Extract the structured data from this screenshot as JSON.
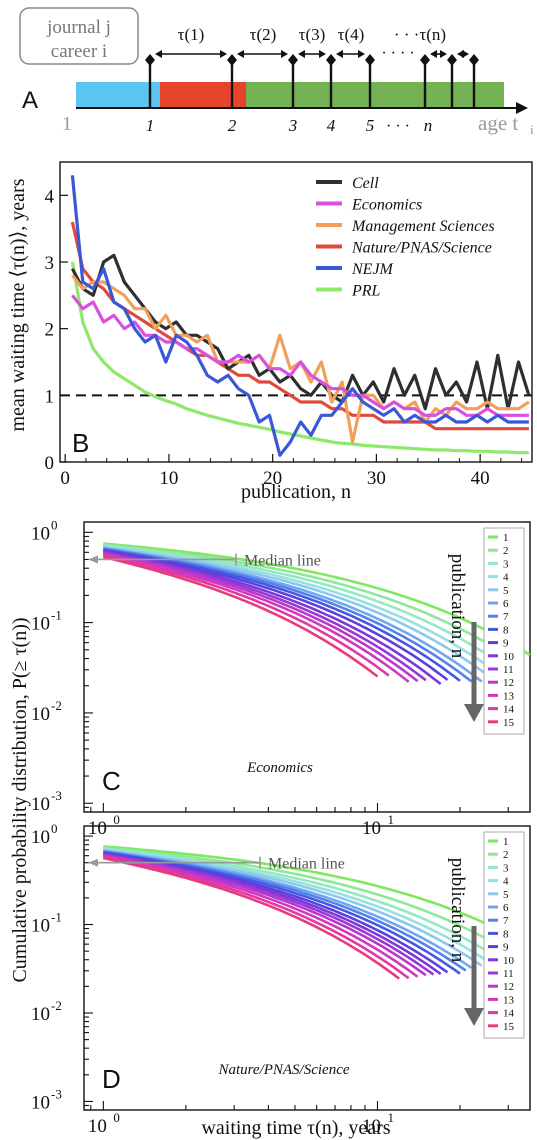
{
  "panel_a": {
    "panel_label": "A",
    "box_line1": "journal j",
    "box_line2": "career i",
    "origin_label": "1",
    "axis_label": "age t",
    "axis_label_sub": "i",
    "ticks": [
      "1",
      "2",
      "3",
      "4",
      "5",
      "n"
    ],
    "tick_ellipsis": "· · ·",
    "taus": [
      "τ(1)",
      "τ(2)",
      "τ(3)",
      "τ(4)",
      "· · ·τ(n)"
    ],
    "top_dots": "· · · ·",
    "segment_colors": [
      "#5bc4f0",
      "#e5432a",
      "#74b354"
    ]
  },
  "y_shared_label": "Cumulative probability distribution, P(≥ τ(n))",
  "chart_data": [
    {
      "id": "B",
      "panel_label": "B",
      "type": "line",
      "xlabel": "publication, n",
      "ylabel": "mean waiting time ⟨τ(n)⟩, years",
      "xlim": [
        -0.5,
        45
      ],
      "ylim": [
        0,
        4.5
      ],
      "xticks": [
        0,
        10,
        20,
        30,
        40
      ],
      "yticks": [
        0,
        1,
        2,
        3,
        4
      ],
      "reference_line": 1,
      "legend_position": "top-right",
      "series": [
        {
          "name": "Cell",
          "color": "#2f2f2f",
          "values": [
            2.9,
            2.6,
            2.5,
            3.0,
            3.1,
            2.7,
            2.5,
            2.3,
            2.1,
            2.0,
            2.1,
            1.9,
            1.9,
            1.8,
            1.7,
            1.4,
            1.5,
            1.6,
            1.3,
            1.4,
            1.2,
            1.3,
            1.1,
            1.0,
            1.2,
            1.0,
            0.9,
            1.3,
            1.0,
            1.2,
            0.9,
            1.4,
            1.0,
            1.3,
            0.8,
            1.4,
            1.0,
            1.2,
            0.9,
            1.5,
            0.8,
            1.6,
            0.8,
            1.5,
            1.0
          ]
        },
        {
          "name": "Economics",
          "color": "#d94fe0",
          "values": [
            2.5,
            2.3,
            2.4,
            2.1,
            2.2,
            2.0,
            2.1,
            1.9,
            1.9,
            1.8,
            1.8,
            1.7,
            1.7,
            1.6,
            1.5,
            1.5,
            1.6,
            1.5,
            1.6,
            1.4,
            1.4,
            1.3,
            1.5,
            1.3,
            1.2,
            1.1,
            1.1,
            1.0,
            1.0,
            0.9,
            0.8,
            0.9,
            0.8,
            0.8,
            0.7,
            0.7,
            0.8,
            0.8,
            0.7,
            0.7,
            0.8,
            0.7,
            0.7,
            0.7,
            0.7
          ]
        },
        {
          "name": "Management Sciences",
          "color": "#f0a05a",
          "values": [
            2.8,
            2.6,
            2.7,
            2.7,
            2.6,
            2.5,
            2.3,
            2.3,
            2.0,
            2.2,
            1.9,
            1.9,
            1.8,
            1.9,
            1.5,
            1.5,
            1.5,
            1.5,
            1.6,
            1.4,
            1.9,
            1.4,
            1.5,
            1.2,
            1.5,
            0.9,
            1.2,
            0.3,
            1.0,
            1.0,
            0.8,
            0.9,
            0.8,
            0.9,
            0.6,
            0.8,
            0.7,
            0.9,
            0.8,
            0.8,
            0.9,
            0.8,
            0.8,
            0.8,
            0.9
          ]
        },
        {
          "name": "Nature/PNAS/Science",
          "color": "#e04a3a",
          "values": [
            3.6,
            2.9,
            2.7,
            2.6,
            2.4,
            2.3,
            2.2,
            2.1,
            2.0,
            1.9,
            1.8,
            1.7,
            1.6,
            1.6,
            1.5,
            1.4,
            1.3,
            1.3,
            1.2,
            1.2,
            1.1,
            1.0,
            0.9,
            0.9,
            0.9,
            0.8,
            0.8,
            0.7,
            0.7,
            0.7,
            0.6,
            0.6,
            0.6,
            0.6,
            0.6,
            0.5,
            0.5,
            0.5,
            0.5,
            0.5,
            0.5,
            0.5,
            0.5,
            0.5,
            0.5
          ]
        },
        {
          "name": "NEJM",
          "color": "#3a57d8",
          "values": [
            4.3,
            2.7,
            2.6,
            2.9,
            2.4,
            2.3,
            2.0,
            1.8,
            1.9,
            1.5,
            1.9,
            1.8,
            1.6,
            1.3,
            1.2,
            1.3,
            1.1,
            1.0,
            0.6,
            0.7,
            0.1,
            0.3,
            0.6,
            0.4,
            0.7,
            0.7,
            0.9,
            1.1,
            0.9,
            0.8,
            0.7,
            0.8,
            0.6,
            0.7,
            0.6,
            0.6,
            0.7,
            0.6,
            0.6,
            0.7,
            0.6,
            0.7,
            0.6,
            0.6,
            0.6
          ]
        },
        {
          "name": "PRL",
          "color": "#8ee86a",
          "values": [
            3.0,
            2.1,
            1.7,
            1.5,
            1.35,
            1.25,
            1.15,
            1.05,
            0.98,
            0.92,
            0.87,
            0.8,
            0.75,
            0.7,
            0.66,
            0.62,
            0.58,
            0.55,
            0.52,
            0.49,
            0.45,
            0.42,
            0.39,
            0.36,
            0.33,
            0.3,
            0.28,
            0.27,
            0.25,
            0.24,
            0.23,
            0.22,
            0.21,
            0.2,
            0.19,
            0.18,
            0.18,
            0.17,
            0.17,
            0.16,
            0.16,
            0.15,
            0.15,
            0.14,
            0.14
          ]
        }
      ]
    },
    {
      "id": "C",
      "panel_label": "C",
      "type": "line",
      "title": "Economics",
      "xscale": "log",
      "yscale": "log",
      "xlim": [
        0.85,
        36
      ],
      "ylim": [
        0.0008,
        1.3
      ],
      "xtick_labels": [
        "10^0",
        "10^1"
      ],
      "ytick_labels": [
        "10^0",
        "10^-1",
        "10^-2",
        "10^-3"
      ],
      "annotation": "Median line",
      "median_level": 0.5,
      "side_label": "publication, n",
      "legend_position": "right",
      "legend_labels": [
        "1",
        "2",
        "3",
        "4",
        "5",
        "6",
        "7",
        "8",
        "9",
        "10",
        "11",
        "12",
        "13",
        "14",
        "15"
      ],
      "colors": [
        "#7ee860",
        "#8ce89a",
        "#95e8c0",
        "#96e0e0",
        "#8cc8ee",
        "#6ea8ee",
        "#5480ec",
        "#4458e4",
        "#5a40dc",
        "#7a38d8",
        "#9838d6",
        "#b838cc",
        "#d038be",
        "#e038a4",
        "#ea3a7c"
      ],
      "x_end": [
        36,
        33,
        30,
        28,
        26,
        24,
        22,
        20,
        18,
        17,
        15,
        14,
        13,
        11,
        10
      ],
      "series_note": "curves P(>=tau) = exp(-(t-1)^0.6 / s_k) with s_k per publication number",
      "scales": [
        3.0,
        2.65,
        2.4,
        2.2,
        2.05,
        1.9,
        1.8,
        1.7,
        1.6,
        1.5,
        1.42,
        1.35,
        1.28,
        1.2,
        1.12
      ]
    },
    {
      "id": "D",
      "panel_label": "D",
      "type": "line",
      "title": "Nature/PNAS/Science",
      "xscale": "log",
      "yscale": "log",
      "xlabel": "waiting time τ(n), years",
      "xlim": [
        0.85,
        36
      ],
      "ylim": [
        0.0008,
        1.3
      ],
      "xtick_labels": [
        "10^0",
        "10^1"
      ],
      "ytick_labels": [
        "10^0",
        "10^-1",
        "10^-2",
        "10^-3"
      ],
      "annotation": "Median line",
      "median_level": 0.5,
      "side_label": "publication, n",
      "legend_position": "right",
      "legend_labels": [
        "1",
        "2",
        "3",
        "4",
        "5",
        "6",
        "7",
        "8",
        "9",
        "10",
        "11",
        "12",
        "13",
        "14",
        "15"
      ],
      "colors": [
        "#7ee860",
        "#8ce89a",
        "#95e8c0",
        "#96e0e0",
        "#8cc8ee",
        "#6ea8ee",
        "#5480ec",
        "#4458e4",
        "#5a40dc",
        "#7a38d8",
        "#9838d6",
        "#b838cc",
        "#d038be",
        "#e038a4",
        "#ea3a7c"
      ],
      "x_end": [
        34,
        30,
        27,
        25,
        24,
        22,
        21,
        20,
        18,
        17,
        16,
        15,
        14,
        13,
        12
      ],
      "scales": [
        3.3,
        2.8,
        2.5,
        2.3,
        2.15,
        2.0,
        1.9,
        1.8,
        1.7,
        1.62,
        1.55,
        1.48,
        1.4,
        1.32,
        1.25
      ]
    }
  ]
}
